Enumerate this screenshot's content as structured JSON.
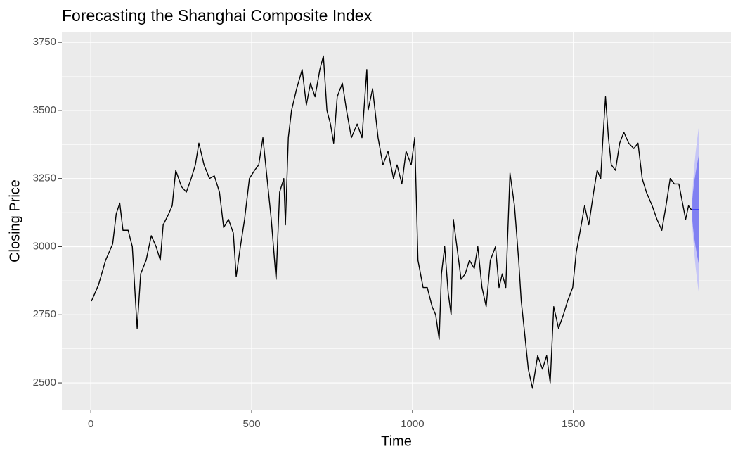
{
  "chart_data": {
    "type": "line",
    "title": "Forecasting the Shanghai Composite Index",
    "x_label": "Time",
    "y_label": "Closing Price",
    "xlim": [
      -90,
      1990
    ],
    "ylim": [
      2402,
      3789
    ],
    "xticks": [
      0,
      500,
      1000,
      1500
    ],
    "yticks": [
      2500,
      2750,
      3000,
      3250,
      3500,
      3750
    ],
    "grid": true,
    "series": [
      {
        "color": "#000000",
        "x": [
          2,
          24,
          46,
          68,
          79,
          90,
          100,
          116,
          129,
          144,
          155,
          172,
          188,
          203,
          216,
          225,
          242,
          253,
          264,
          282,
          297,
          312,
          325,
          336,
          352,
          369,
          384,
          400,
          413,
          428,
          443,
          452,
          465,
          478,
          493,
          509,
          522,
          535,
          548,
          561,
          576,
          587,
          600,
          605,
          614,
          624,
          640,
          657,
          670,
          683,
          697,
          712,
          723,
          734,
          745,
          755,
          766,
          782,
          795,
          810,
          828,
          843,
          858,
          862,
          876,
          893,
          908,
          924,
          941,
          952,
          967,
          980,
          996,
          1007,
          1017,
          1033,
          1046,
          1061,
          1072,
          1083,
          1090,
          1100,
          1111,
          1120,
          1127,
          1138,
          1151,
          1164,
          1177,
          1192,
          1203,
          1216,
          1229,
          1242,
          1258,
          1269,
          1279,
          1290,
          1303,
          1317,
          1330,
          1338,
          1347,
          1360,
          1373,
          1389,
          1404,
          1417,
          1428,
          1439,
          1454,
          1469,
          1482,
          1498,
          1509,
          1520,
          1535,
          1548,
          1563,
          1574,
          1585,
          1592,
          1600,
          1609,
          1618,
          1631,
          1644,
          1657,
          1672,
          1688,
          1701,
          1714,
          1727,
          1745,
          1760,
          1775,
          1788,
          1801,
          1814,
          1828,
          1841,
          1849,
          1858,
          1867
        ],
        "values": [
          2800,
          2860,
          2950,
          3010,
          3120,
          3160,
          3060,
          3060,
          3000,
          2700,
          2900,
          2950,
          3040,
          3000,
          2950,
          3080,
          3120,
          3150,
          3280,
          3220,
          3200,
          3250,
          3300,
          3380,
          3300,
          3250,
          3260,
          3200,
          3070,
          3100,
          3050,
          2890,
          3000,
          3100,
          3250,
          3280,
          3300,
          3400,
          3250,
          3100,
          2880,
          3200,
          3250,
          3080,
          3400,
          3500,
          3580,
          3650,
          3520,
          3600,
          3550,
          3650,
          3700,
          3500,
          3450,
          3380,
          3550,
          3600,
          3500,
          3400,
          3450,
          3400,
          3650,
          3500,
          3580,
          3400,
          3300,
          3350,
          3250,
          3300,
          3230,
          3350,
          3300,
          3400,
          2950,
          2850,
          2850,
          2780,
          2750,
          2660,
          2900,
          3000,
          2830,
          2750,
          3100,
          3000,
          2880,
          2900,
          2950,
          2920,
          3000,
          2850,
          2780,
          2950,
          3000,
          2850,
          2900,
          2850,
          3270,
          3150,
          2950,
          2800,
          2700,
          2550,
          2480,
          2600,
          2550,
          2600,
          2500,
          2780,
          2700,
          2750,
          2800,
          2850,
          2980,
          3050,
          3150,
          3080,
          3200,
          3280,
          3250,
          3400,
          3550,
          3400,
          3300,
          3280,
          3380,
          3420,
          3380,
          3360,
          3380,
          3250,
          3200,
          3150,
          3100,
          3060,
          3150,
          3250,
          3230,
          3230,
          3150,
          3100,
          3150,
          3135
        ]
      }
    ],
    "forecast": {
      "color": "#0000ff",
      "band80_color": "#8080f2",
      "band95_color": "#c6c6f6",
      "x": [
        1870,
        1872,
        1876,
        1880,
        1885,
        1890
      ],
      "mean": [
        3135,
        3135,
        3135,
        3135,
        3135,
        3135
      ],
      "lo80": [
        3095,
        3070,
        3030,
        3000,
        2965,
        2935
      ],
      "hi80": [
        3175,
        3200,
        3240,
        3270,
        3305,
        3335
      ],
      "lo95": [
        3075,
        3035,
        2975,
        2925,
        2875,
        2830
      ],
      "hi95": [
        3195,
        3235,
        3295,
        3345,
        3395,
        3440
      ]
    }
  }
}
